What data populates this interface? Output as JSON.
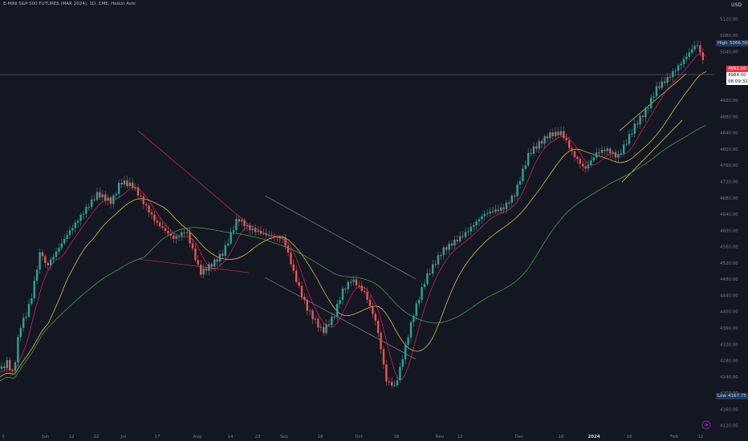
{
  "header": {
    "title": "E-MINI S&P 500 FUTURES (MAR 2024), 1D, CME, Heikin Ashi",
    "currency": "USD"
  },
  "price_tags": {
    "high_label": "High",
    "high_value": "5066.50",
    "last_value": "4992.00",
    "current_value": "4984.00",
    "countdown": "08:09:32",
    "low_label": "Low",
    "low_value": "4167.75"
  },
  "colors": {
    "background": "#131722",
    "up": "#26a69a",
    "down": "#ef5350",
    "ma_fast": "#e91e63",
    "ma_mid": "#f5d547",
    "ma_slow": "#4caf50",
    "trendline_red": "#f23645",
    "trendline_gray": "#9598a1",
    "trendline_yellow": "#ffeb3b"
  },
  "chart_data": {
    "type": "candlestick",
    "title": "E-MINI S&P 500 FUTURES (MAR 2024), 1D, CME, Heikin Ashi",
    "y_ticks": [
      5120,
      5080,
      5040,
      4920,
      4880,
      4840,
      4800,
      4760,
      4720,
      4680,
      4640,
      4600,
      4560,
      4520,
      4480,
      4440,
      4400,
      4360,
      4320,
      4280,
      4240,
      4200,
      4160,
      4120
    ],
    "y_tick_labels": [
      "5120.00",
      "5080.00",
      "5040.00",
      "4920.00",
      "4880.00",
      "4840.00",
      "4800.00",
      "4760.00",
      "4720.00",
      "4680.00",
      "4640.00",
      "4600.00",
      "4560.00",
      "4520.00",
      "4480.00",
      "4440.00",
      "4400.00",
      "4360.00",
      "4320.00",
      "4280.00",
      "4240.00",
      "4200.00",
      "4160.00",
      "4120.00"
    ],
    "x_labels": [
      "5",
      "Jun",
      "12",
      "22",
      "Jul",
      "17",
      "Aug",
      "14",
      "23",
      "Sep",
      "18",
      "Oct",
      "16",
      "Nov",
      "13",
      "Dec",
      "18",
      "2024",
      "16",
      "Feb",
      "12"
    ],
    "series_moving_averages": [
      "fast",
      "mid",
      "slow"
    ],
    "ylim": [
      4100,
      5150
    ],
    "grid": false
  }
}
